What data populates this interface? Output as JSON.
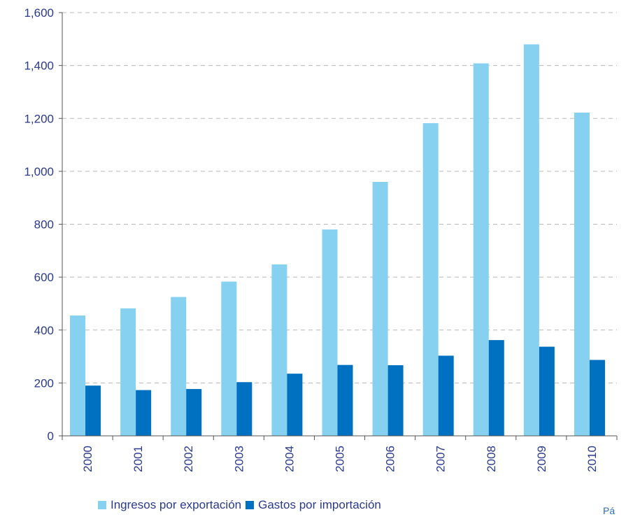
{
  "chart_data": {
    "type": "bar",
    "title": "",
    "xlabel": "",
    "ylabel": "",
    "categories": [
      "2000",
      "2001",
      "2002",
      "2003",
      "2004",
      "2005",
      "2006",
      "2007",
      "2008",
      "2009",
      "2010"
    ],
    "series": [
      {
        "name": "Ingresos por exportación",
        "color": "#87d1f0",
        "values": [
          455,
          482,
          525,
          583,
          648,
          780,
          960,
          1182,
          1408,
          1480,
          1222
        ]
      },
      {
        "name": "Gastos por importación",
        "color": "#0070c0",
        "values": [
          190,
          173,
          177,
          203,
          235,
          268,
          267,
          303,
          362,
          337,
          287
        ]
      }
    ],
    "ylim": [
      0,
      1600
    ],
    "yticks": [
      0,
      200,
      400,
      600,
      800,
      1000,
      1200,
      1400,
      1600
    ],
    "ytick_labels": [
      "0",
      "200",
      "400",
      "600",
      "800",
      "1,000",
      "1,200",
      "1,400",
      "1,600"
    ],
    "grid": true,
    "legend_position": "bottom"
  },
  "footer": {
    "text": "Pá"
  }
}
